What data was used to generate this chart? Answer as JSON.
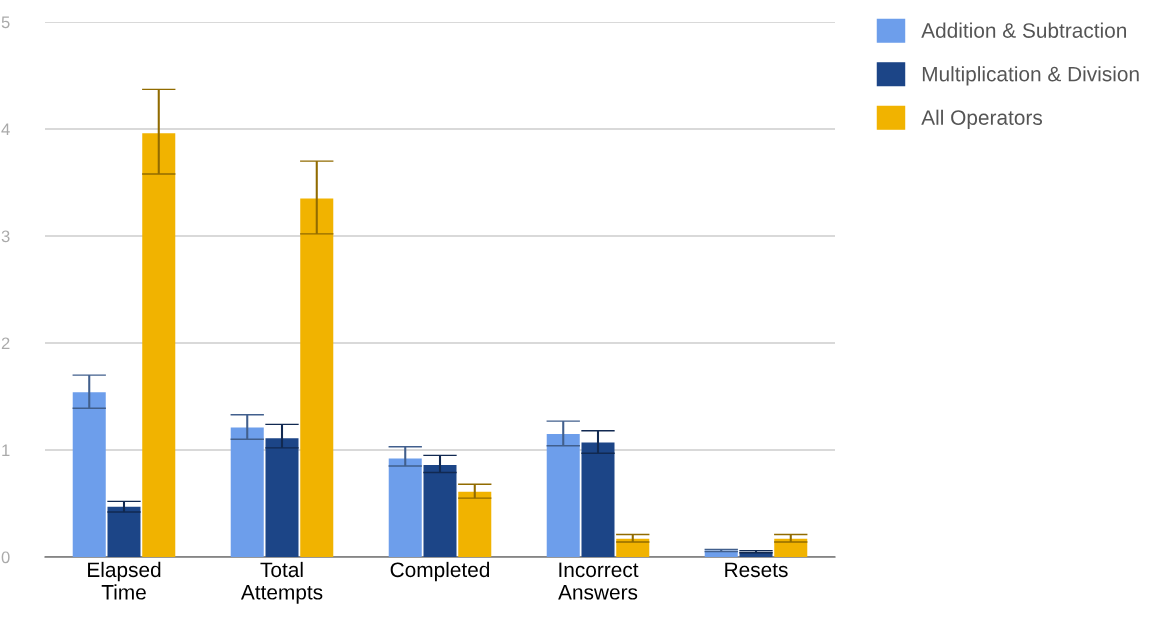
{
  "chart_data": {
    "type": "bar",
    "categories": [
      "Elapsed Time",
      "Total Attempts",
      "Completed",
      "Incorrect Answers",
      "Resets"
    ],
    "series": [
      {
        "name": "Addition & Subtraction",
        "color": "#6d9eeb",
        "values": [
          1.54,
          1.21,
          0.92,
          1.15,
          0.06
        ],
        "errors": [
          [
            1.39,
            1.7
          ],
          [
            1.1,
            1.33
          ],
          [
            0.85,
            1.03
          ],
          [
            1.04,
            1.27
          ],
          [
            0.05,
            0.07
          ]
        ]
      },
      {
        "name": "Multiplication & Division",
        "color": "#1c4587",
        "values": [
          0.47,
          1.11,
          0.86,
          1.07,
          0.05
        ],
        "errors": [
          [
            0.42,
            0.52
          ],
          [
            1.02,
            1.24
          ],
          [
            0.79,
            0.95
          ],
          [
            0.97,
            1.18
          ],
          [
            0.04,
            0.06
          ]
        ]
      },
      {
        "name": "All Operators",
        "color": "#f1b300",
        "values": [
          3.96,
          3.35,
          0.61,
          0.17,
          0.17
        ],
        "errors": [
          [
            3.58,
            4.37
          ],
          [
            3.02,
            3.7
          ],
          [
            0.55,
            0.68
          ],
          [
            0.14,
            0.21
          ],
          [
            0.14,
            0.21
          ]
        ]
      }
    ],
    "ylim": [
      0,
      5
    ],
    "yticks": [
      0,
      1,
      2,
      3,
      4,
      5
    ],
    "grid": "y",
    "legend": "top right"
  }
}
